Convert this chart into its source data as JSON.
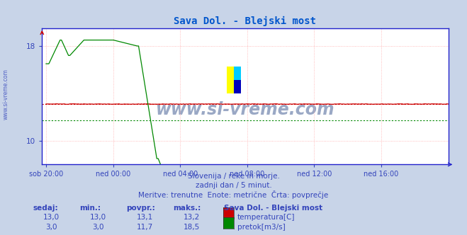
{
  "title": "Sava Dol. - Blejski most",
  "title_color": "#0055cc",
  "bg_color": "#c8d4e8",
  "plot_bg_color": "#ffffff",
  "grid_color": "#ffaaaa",
  "x_labels": [
    "sob 20:00",
    "ned 00:00",
    "ned 04:00",
    "ned 08:00",
    "ned 12:00",
    "ned 16:00"
  ],
  "x_ticks_norm": [
    0.0,
    0.1667,
    0.3333,
    0.5,
    0.6667,
    0.8333
  ],
  "y_min": 8.0,
  "y_max": 19.5,
  "y_tick_vals": [
    10,
    18
  ],
  "temp_color": "#cc0000",
  "flow_color": "#008800",
  "temp_avg": 13.1,
  "flow_avg": 11.7,
  "watermark_text": "www.si-vreme.com",
  "watermark_color": "#8899bb",
  "subtitle1": "Slovenija / reke in morje.",
  "subtitle2": "zadnji dan / 5 minut.",
  "subtitle3": "Meritve: trenutne  Enote: metrične  Črta: povprečje",
  "legend_title": "Sava Dol. - Blejski most",
  "col_headers": [
    "sedaj:",
    "min.:",
    "povpr.:",
    "maks.:"
  ],
  "legend_rows": [
    {
      "sedaj": "13,0",
      "min": "13,0",
      "povpr": "13,1",
      "maks": "13,2",
      "label": "temperatura[C]",
      "color": "#cc0000"
    },
    {
      "sedaj": "3,0",
      "min": "3,0",
      "povpr": "11,7",
      "maks": "18,5",
      "label": "pretok[m3/s]",
      "color": "#008800"
    }
  ],
  "text_color": "#3344bb",
  "axis_color": "#2222cc",
  "n_points": 288,
  "sidewatermark": "www.si-vreme.com"
}
